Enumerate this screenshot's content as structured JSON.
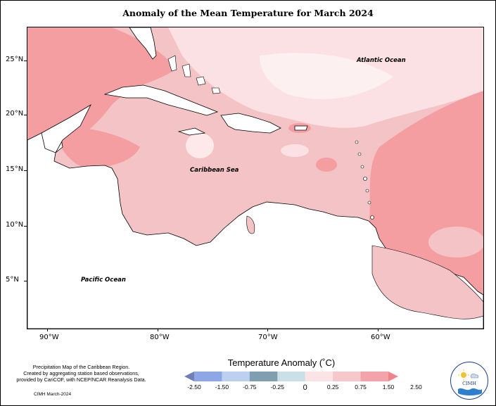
{
  "title": "Anomaly of the Mean Temperature for March 2024",
  "map": {
    "labels": {
      "atlantic": "Atlantic Ocean",
      "caribbean": "Caribbean Sea",
      "pacific": "Pacific Ocean"
    },
    "lat_ticks": [
      "25°N",
      "20°N",
      "15°N",
      "10°N",
      "5°N"
    ],
    "lon_ticks": [
      "90°W",
      "80°W",
      "70°W",
      "60°W"
    ],
    "lon_range": [
      "92°W",
      "50°W"
    ],
    "lat_range": [
      "2°N",
      "28°N"
    ]
  },
  "legend": {
    "title": "Temperature Anomaly (˚C)",
    "labels": [
      "-2.50",
      "-1.50",
      "-0.75",
      "-0.25",
      "0",
      "0.25",
      "0.75",
      "1.50",
      "2.50"
    ],
    "colors": [
      "#6f80b8",
      "#8da6e6",
      "#bcd0f0",
      "#7f9eb0",
      "#c9e0e6",
      "#fbe3e6",
      "#f5c8cc",
      "#f3a3aa",
      "#f08488"
    ]
  },
  "footnote": {
    "line1": "Precipitation Map of the Caribbean Region.",
    "line2": "Created by aggregating station based observations,",
    "line3": "provided by CariCOF, with NCEP/NCAR Reanalysis Data.",
    "credit": "CIMH March-2024"
  },
  "logo": {
    "text": "CIMH"
  }
}
